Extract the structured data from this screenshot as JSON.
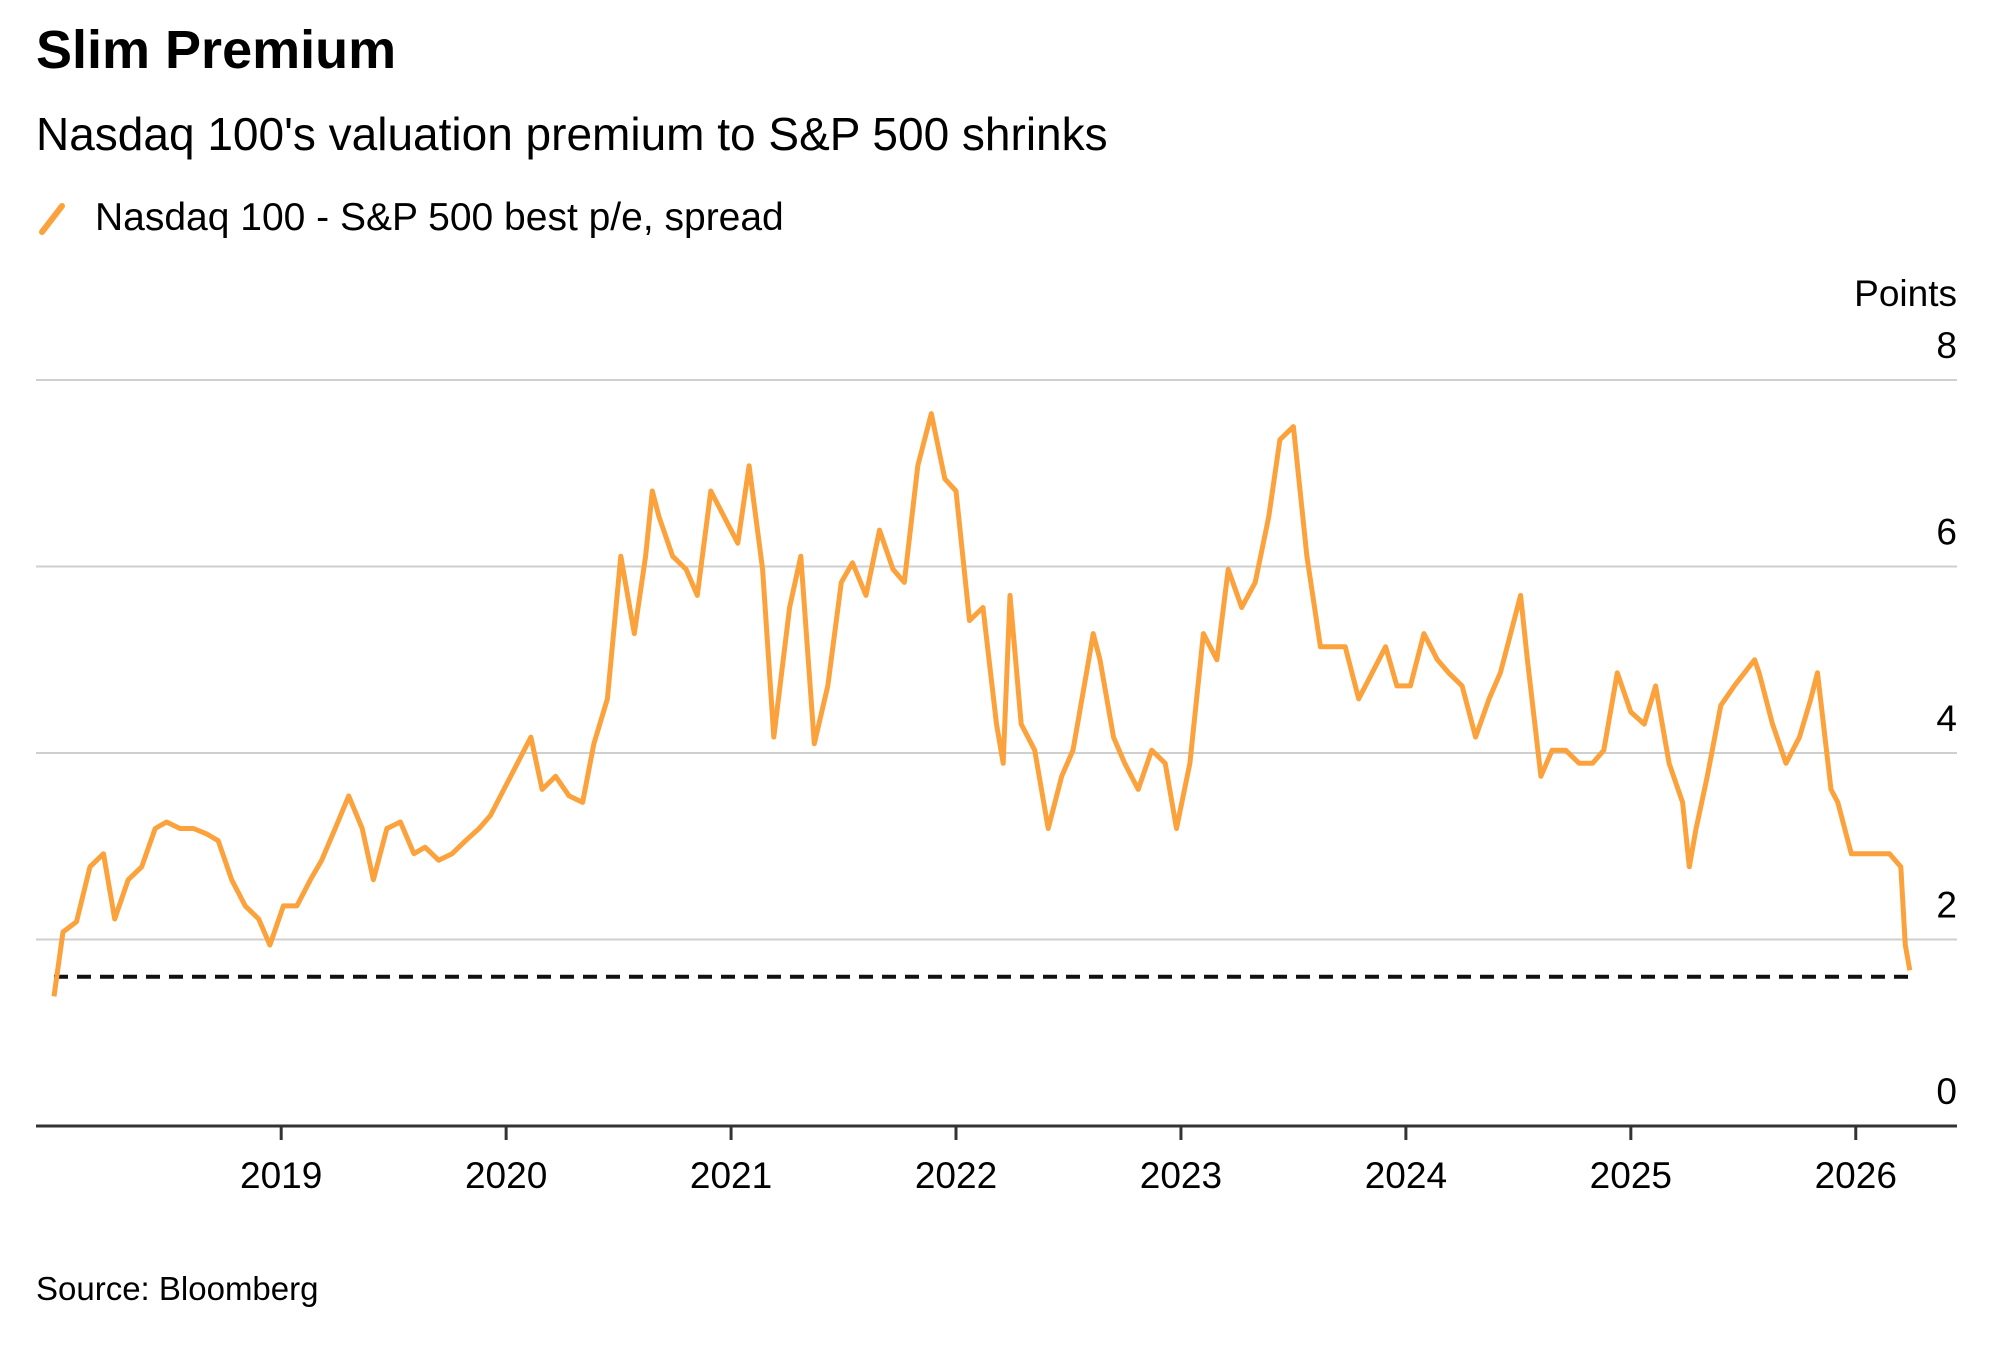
{
  "chart_data": {
    "type": "line",
    "title": "Slim Premium",
    "subtitle": "Nasdaq 100's valuation premium to S&P 500 shrinks",
    "y_axis_label": "Points",
    "source": "Source: Bloomberg",
    "x": [
      2017.99,
      2018.03,
      2018.09,
      2018.15,
      2018.21,
      2018.26,
      2018.32,
      2018.38,
      2018.44,
      2018.49,
      2018.55,
      2018.61,
      2018.67,
      2018.72,
      2018.78,
      2018.84,
      2018.9,
      2018.95,
      2019.01,
      2019.07,
      2019.13,
      2019.18,
      2019.24,
      2019.3,
      2019.36,
      2019.41,
      2019.47,
      2019.53,
      2019.59,
      2019.64,
      2019.7,
      2019.76,
      2019.82,
      2019.88,
      2019.93,
      2019.99,
      2020.05,
      2020.11,
      2020.16,
      2020.22,
      2020.28,
      2020.34,
      2020.39,
      2020.45,
      2020.51,
      2020.57,
      2020.62,
      2020.65,
      2020.68,
      2020.74,
      2020.8,
      2020.85,
      2020.91,
      2020.97,
      2021.03,
      2021.08,
      2021.14,
      2021.19,
      2021.26,
      2021.31,
      2021.37,
      2021.43,
      2021.49,
      2021.54,
      2021.6,
      2021.66,
      2021.72,
      2021.77,
      2021.83,
      2021.89,
      2021.95,
      2022.0,
      2022.06,
      2022.12,
      2022.18,
      2022.21,
      2022.24,
      2022.29,
      2022.35,
      2022.41,
      2022.47,
      2022.52,
      2022.58,
      2022.61,
      2022.64,
      2022.7,
      2022.75,
      2022.81,
      2022.87,
      2022.93,
      2022.98,
      2023.04,
      2023.1,
      2023.16,
      2023.21,
      2023.27,
      2023.33,
      2023.39,
      2023.44,
      2023.5,
      2023.56,
      2023.62,
      2023.67,
      2023.73,
      2023.79,
      2023.85,
      2023.91,
      2023.96,
      2024.02,
      2024.08,
      2024.14,
      2024.19,
      2024.25,
      2024.31,
      2024.37,
      2024.42,
      2024.51,
      2024.54,
      2024.6,
      2024.65,
      2024.71,
      2024.77,
      2024.83,
      2024.88,
      2024.94,
      2025.0,
      2025.06,
      2025.11,
      2025.17,
      2025.23,
      2025.26,
      2025.29,
      2025.34,
      2025.4,
      2025.46,
      2025.55,
      2025.57,
      2025.63,
      2025.69,
      2025.75,
      2025.8,
      2025.83,
      2025.89,
      2025.92,
      2025.98,
      2026.04,
      2026.09,
      2026.15,
      2026.2,
      2026.22,
      2026.24
    ],
    "series": [
      {
        "name": "Nasdaq 100 - S&P 500 best p/e, spread",
        "color": "#fba23c",
        "values": [
          1.39,
          2.08,
          2.19,
          2.78,
          2.92,
          2.22,
          2.64,
          2.78,
          3.19,
          3.26,
          3.19,
          3.19,
          3.13,
          3.06,
          2.64,
          2.36,
          2.22,
          1.94,
          2.36,
          2.36,
          2.64,
          2.85,
          3.19,
          3.54,
          3.19,
          2.64,
          3.19,
          3.26,
          2.92,
          2.99,
          2.85,
          2.92,
          3.06,
          3.19,
          3.33,
          3.61,
          3.89,
          4.17,
          3.61,
          3.75,
          3.54,
          3.47,
          4.1,
          4.58,
          6.11,
          5.28,
          6.11,
          6.81,
          6.53,
          6.11,
          5.97,
          5.69,
          6.81,
          6.53,
          6.25,
          7.08,
          5.97,
          4.17,
          5.56,
          6.11,
          4.1,
          4.72,
          5.83,
          6.04,
          5.69,
          6.39,
          5.97,
          5.83,
          7.08,
          7.64,
          6.94,
          6.81,
          5.42,
          5.56,
          4.31,
          3.89,
          5.69,
          4.31,
          4.03,
          3.19,
          3.75,
          4.03,
          4.86,
          5.28,
          5.0,
          4.17,
          3.89,
          3.61,
          4.03,
          3.89,
          3.19,
          3.89,
          5.28,
          5.0,
          5.97,
          5.56,
          5.83,
          6.53,
          7.36,
          7.5,
          6.11,
          5.14,
          5.14,
          5.14,
          4.58,
          4.86,
          5.14,
          4.72,
          4.72,
          5.28,
          5.0,
          4.86,
          4.72,
          4.17,
          4.58,
          4.86,
          5.69,
          5.0,
          3.75,
          4.03,
          4.03,
          3.89,
          3.89,
          4.03,
          4.86,
          4.44,
          4.31,
          4.72,
          3.89,
          3.47,
          2.78,
          3.19,
          3.75,
          4.51,
          4.72,
          5.0,
          4.86,
          4.31,
          3.89,
          4.17,
          4.58,
          4.86,
          3.61,
          3.47,
          2.92,
          2.92,
          2.92,
          2.92,
          2.78,
          1.94,
          1.67
        ]
      }
    ],
    "reference_line": 1.6,
    "xlim": [
      2017.91,
      2026.45
    ],
    "xticks": [
      2019,
      2020,
      2021,
      2022,
      2023,
      2024,
      2025,
      2026
    ],
    "ylim": [
      0,
      8
    ],
    "yticks": [
      0,
      2,
      4,
      6,
      8
    ],
    "grid": true
  }
}
